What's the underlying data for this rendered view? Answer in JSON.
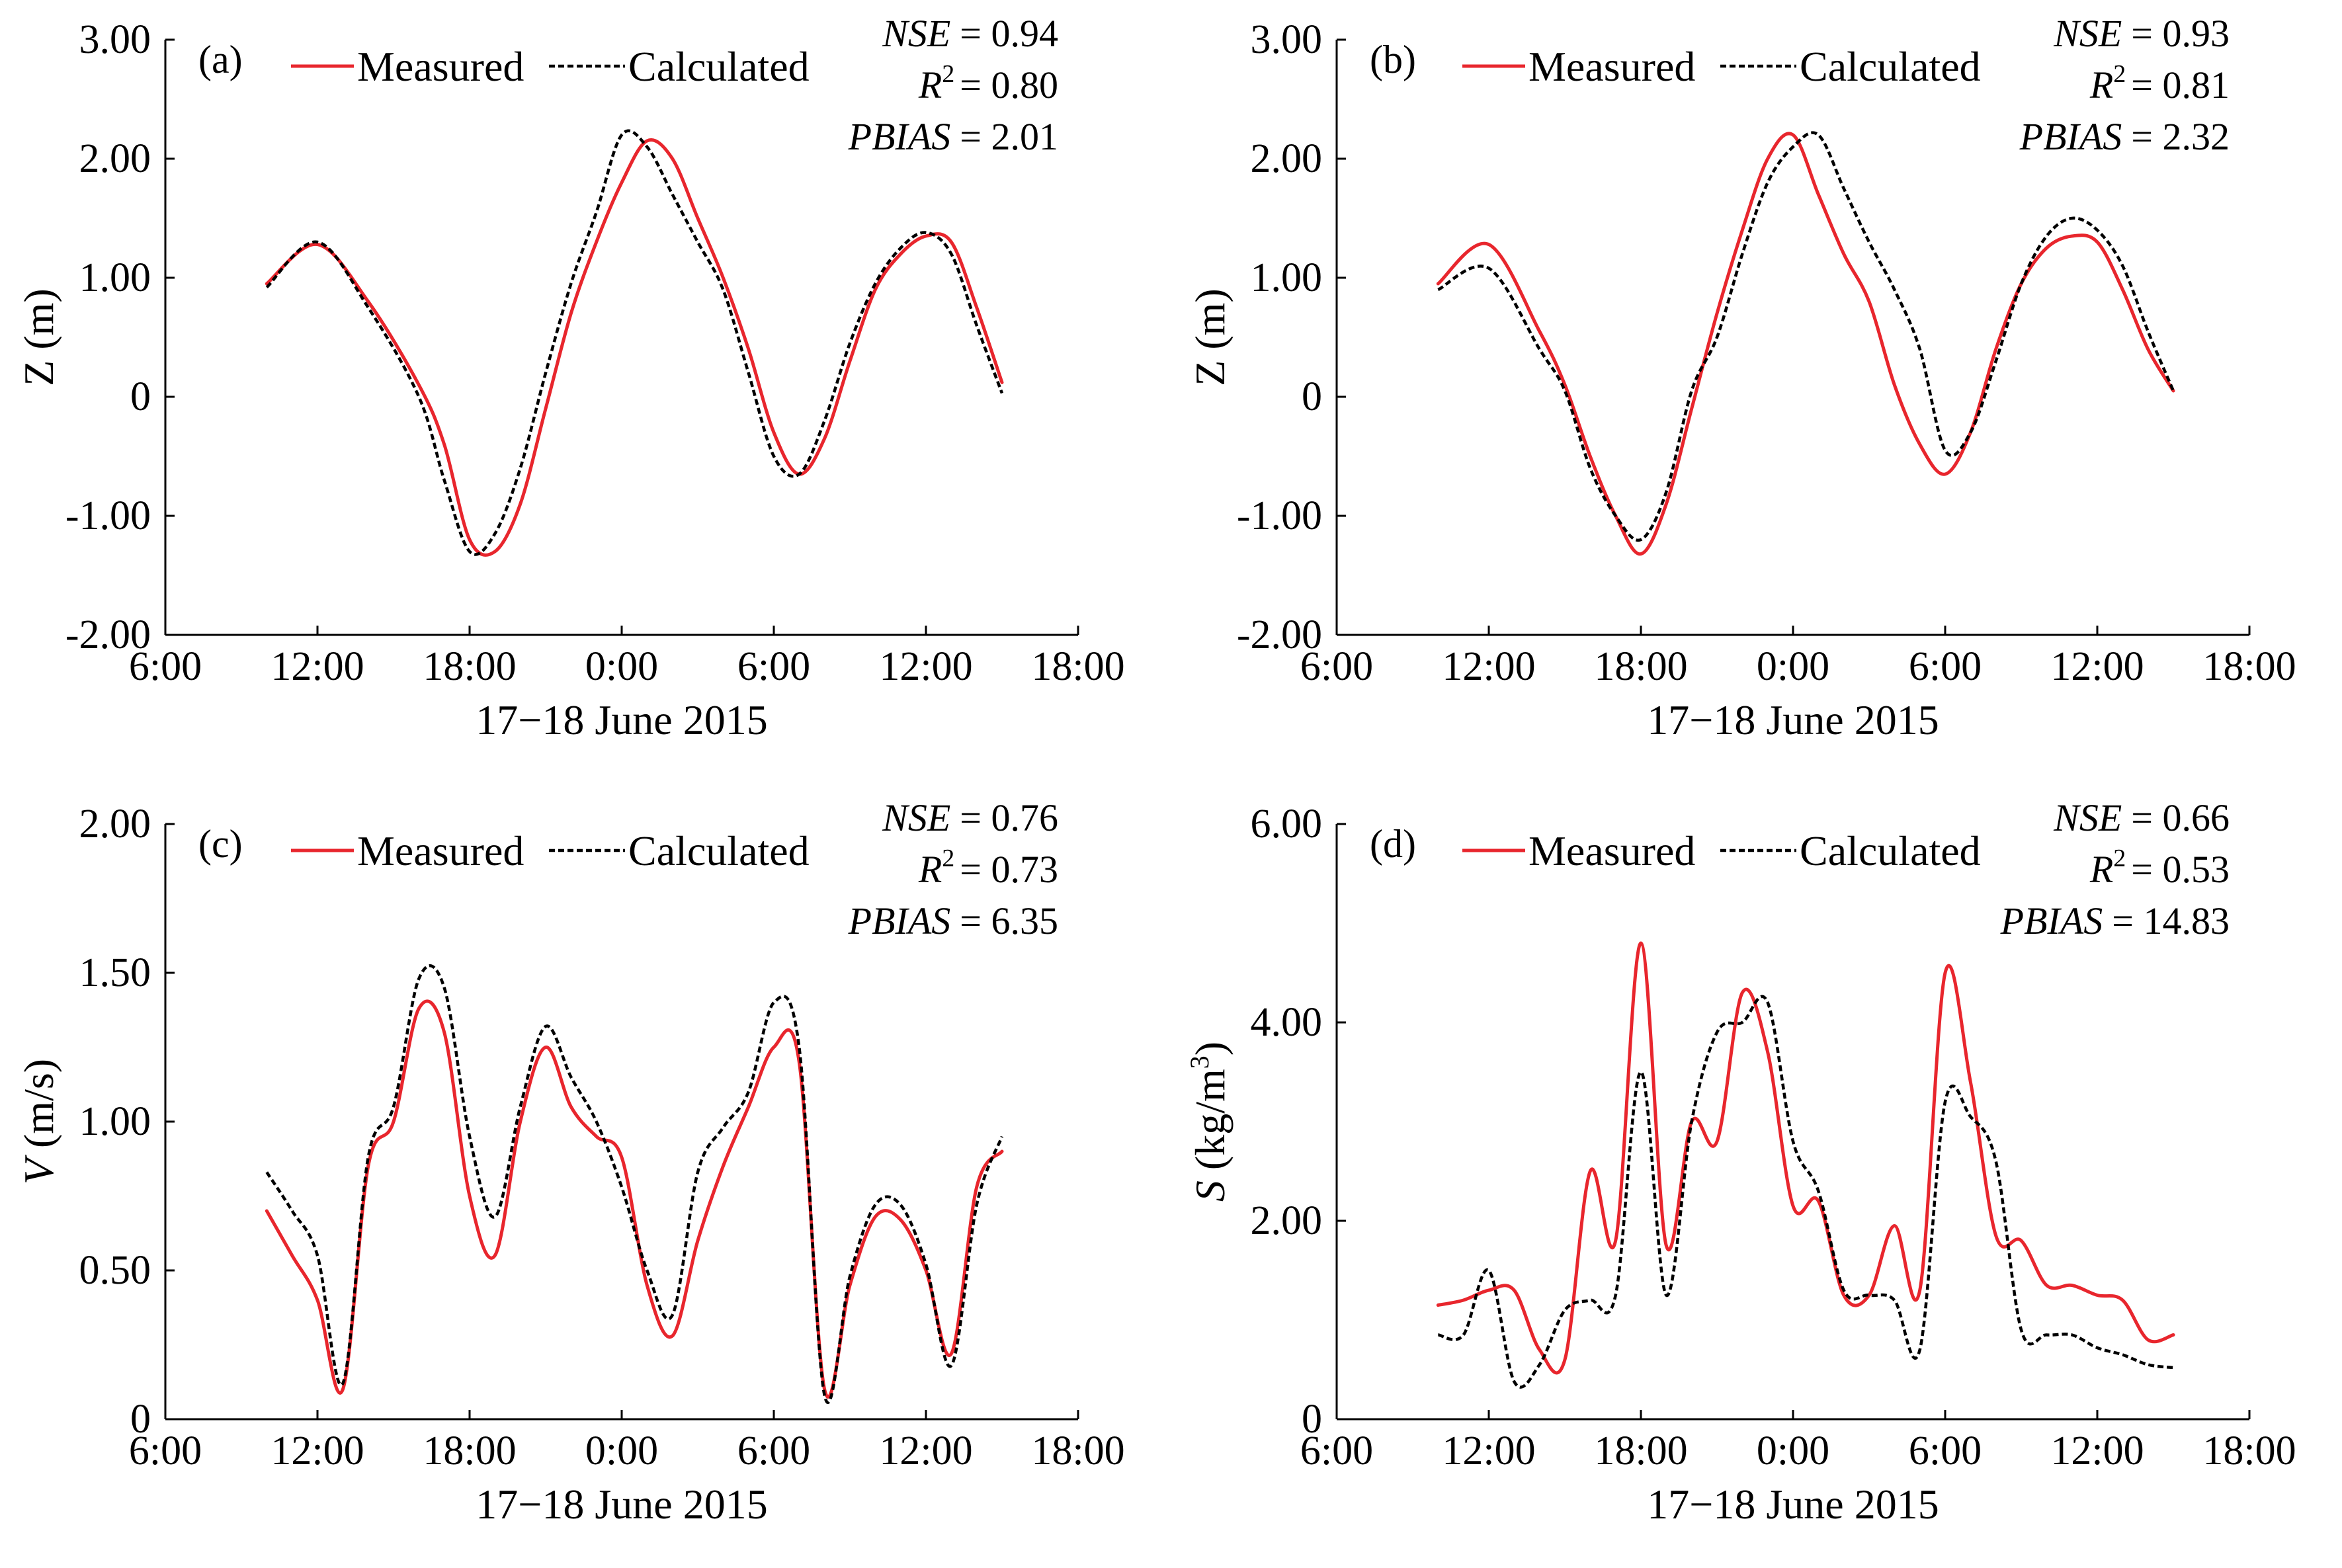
{
  "figure": {
    "colors": {
      "measured": "#e8262d",
      "calculated": "#000000",
      "axis": "#000000"
    }
  },
  "chart_data": [
    {
      "type": "line",
      "panel_label": "(a)",
      "xlabel": "17−18 June 2015",
      "ylabel": "Z (m)",
      "ylabel_var": "Z",
      "ylabel_unit": " (m)",
      "ylabel_sup": "",
      "ylabel_unit_after": "",
      "xlim": [
        6,
        42
      ],
      "ylim": [
        -2,
        3
      ],
      "x_ticks": [
        6,
        12,
        18,
        24,
        30,
        36,
        42
      ],
      "x_tick_labels": [
        "6:00",
        "12:00",
        "18:00",
        "0:00",
        "6:00",
        "12:00",
        "18:00"
      ],
      "y_ticks": [
        -2,
        -1,
        0,
        1,
        2,
        3
      ],
      "y_tick_labels": [
        "-2.00",
        "-1.00",
        "0",
        "1.00",
        "2.00",
        "3.00"
      ],
      "legend": {
        "measured": "Measured",
        "calculated": "Calculated"
      },
      "stats": {
        "nse_label": "NSE",
        "nse": "= 0.94",
        "r2_label": "R",
        "r2_sup": "2",
        "r2": "= 0.80",
        "pbias_label": "PBIAS",
        "pbias": "= 2.01"
      },
      "series": [
        {
          "name": "Measured",
          "x": [
            10,
            12,
            14,
            16,
            17,
            18,
            19,
            20,
            21,
            22,
            23,
            24,
            25,
            26,
            27,
            28,
            29,
            30,
            31,
            32,
            33,
            34,
            35,
            36,
            37,
            38,
            39
          ],
          "values": [
            0.95,
            1.28,
            0.8,
            0.1,
            -0.4,
            -1.2,
            -1.3,
            -0.9,
            -0.1,
            0.7,
            1.3,
            1.8,
            2.15,
            2.0,
            1.5,
            1.0,
            0.4,
            -0.3,
            -0.65,
            -0.35,
            0.3,
            0.9,
            1.2,
            1.35,
            1.3,
            0.75,
            0.12
          ]
        },
        {
          "name": "Calculated",
          "x": [
            10,
            12,
            14,
            16,
            17,
            18,
            19,
            20,
            21,
            22,
            23,
            24,
            25,
            26,
            27,
            28,
            29,
            30,
            31,
            32,
            33,
            34,
            35,
            36,
            37,
            38,
            39
          ],
          "values": [
            0.92,
            1.3,
            0.75,
            0.0,
            -0.7,
            -1.3,
            -1.15,
            -0.6,
            0.2,
            0.95,
            1.55,
            2.2,
            2.1,
            1.7,
            1.3,
            0.9,
            0.2,
            -0.5,
            -0.65,
            -0.2,
            0.45,
            0.95,
            1.25,
            1.38,
            1.2,
            0.6,
            0.03
          ]
        }
      ]
    },
    {
      "type": "line",
      "panel_label": "(b)",
      "xlabel": "17−18 June 2015",
      "ylabel": "Z (m)",
      "ylabel_var": "Z",
      "ylabel_unit": " (m)",
      "ylabel_sup": "",
      "ylabel_unit_after": "",
      "xlim": [
        6,
        42
      ],
      "ylim": [
        -2,
        3
      ],
      "x_ticks": [
        6,
        12,
        18,
        24,
        30,
        36,
        42
      ],
      "x_tick_labels": [
        "6:00",
        "12:00",
        "18:00",
        "0:00",
        "6:00",
        "12:00",
        "18:00"
      ],
      "y_ticks": [
        -2,
        -1,
        0,
        1,
        2,
        3
      ],
      "y_tick_labels": [
        "-2.00",
        "-1.00",
        "0",
        "1.00",
        "2.00",
        "3.00"
      ],
      "legend": {
        "measured": "Measured",
        "calculated": "Calculated"
      },
      "stats": {
        "nse_label": "NSE",
        "nse": "= 0.93",
        "r2_label": "R",
        "r2_sup": "2",
        "r2": "= 0.81",
        "pbias_label": "PBIAS",
        "pbias": "= 2.32"
      },
      "series": [
        {
          "name": "Measured",
          "x": [
            10,
            12,
            14,
            15,
            16,
            17,
            18,
            19,
            20,
            21,
            22,
            23,
            24,
            25,
            26,
            27,
            28,
            29,
            30,
            31,
            32,
            33,
            34,
            35,
            36,
            37,
            38,
            39
          ],
          "values": [
            0.95,
            1.28,
            0.55,
            0.1,
            -0.5,
            -1.0,
            -1.32,
            -0.9,
            -0.1,
            0.7,
            1.4,
            2.0,
            2.2,
            1.7,
            1.2,
            0.8,
            0.1,
            -0.4,
            -0.65,
            -0.3,
            0.4,
            0.95,
            1.25,
            1.35,
            1.3,
            0.9,
            0.4,
            0.05
          ]
        },
        {
          "name": "Calculated",
          "x": [
            10,
            12,
            14,
            15,
            16,
            17,
            18,
            19,
            20,
            21,
            22,
            23,
            24,
            25,
            26,
            27,
            28,
            29,
            30,
            31,
            32,
            33,
            34,
            35,
            36,
            37,
            38,
            39
          ],
          "values": [
            0.9,
            1.08,
            0.4,
            0.05,
            -0.6,
            -1.0,
            -1.2,
            -0.8,
            0.05,
            0.5,
            1.2,
            1.8,
            2.1,
            2.2,
            1.75,
            1.3,
            0.9,
            0.4,
            -0.45,
            -0.3,
            0.3,
            0.95,
            1.35,
            1.5,
            1.4,
            1.1,
            0.55,
            0.05
          ]
        }
      ]
    },
    {
      "type": "line",
      "panel_label": "(c)",
      "xlabel": "17−18 June 2015",
      "ylabel": "V (m/s)",
      "ylabel_var": "V",
      "ylabel_unit": " (m/s)",
      "ylabel_sup": "",
      "ylabel_unit_after": "",
      "xlim": [
        6,
        42
      ],
      "ylim": [
        0,
        2
      ],
      "x_ticks": [
        6,
        12,
        18,
        24,
        30,
        36,
        42
      ],
      "x_tick_labels": [
        "6:00",
        "12:00",
        "18:00",
        "0:00",
        "6:00",
        "12:00",
        "18:00"
      ],
      "y_ticks": [
        0,
        0.5,
        1,
        1.5,
        2
      ],
      "y_tick_labels": [
        "0",
        "0.50",
        "1.00",
        "1.50",
        "2.00"
      ],
      "legend": {
        "measured": "Measured",
        "calculated": "Calculated"
      },
      "stats": {
        "nse_label": "NSE",
        "nse": "= 0.76",
        "r2_label": "R",
        "r2_sup": "2",
        "r2": "= 0.73",
        "pbias_label": "PBIAS",
        "pbias": "= 6.35"
      },
      "series": [
        {
          "name": "Measured",
          "x": [
            10,
            11,
            12,
            13,
            14,
            15,
            16,
            17,
            18,
            19,
            20,
            21,
            22,
            23,
            24,
            25,
            26,
            27,
            28,
            29,
            30,
            31,
            32,
            33,
            34,
            35,
            36,
            37,
            38,
            39
          ],
          "values": [
            0.7,
            0.55,
            0.4,
            0.1,
            0.85,
            1.0,
            1.38,
            1.3,
            0.75,
            0.55,
            1.0,
            1.25,
            1.05,
            0.95,
            0.88,
            0.45,
            0.28,
            0.6,
            0.85,
            1.05,
            1.25,
            1.2,
            0.1,
            0.45,
            0.68,
            0.67,
            0.5,
            0.22,
            0.78,
            0.9
          ]
        },
        {
          "name": "Calculated",
          "x": [
            10,
            11,
            12,
            13,
            14,
            15,
            16,
            17,
            18,
            19,
            20,
            21,
            22,
            23,
            24,
            25,
            26,
            27,
            28,
            29,
            30,
            31,
            32,
            33,
            34,
            35,
            36,
            37,
            38,
            39
          ],
          "values": [
            0.83,
            0.7,
            0.55,
            0.12,
            0.88,
            1.05,
            1.48,
            1.45,
            0.95,
            0.68,
            1.05,
            1.32,
            1.15,
            1.0,
            0.78,
            0.5,
            0.35,
            0.83,
            0.98,
            1.1,
            1.4,
            1.25,
            0.08,
            0.48,
            0.72,
            0.72,
            0.52,
            0.18,
            0.72,
            0.95
          ]
        }
      ]
    },
    {
      "type": "line",
      "panel_label": "(d)",
      "xlabel": "17−18 June 2015",
      "ylabel": "S (kg/m3)",
      "ylabel_var": "S",
      "ylabel_unit": " (kg/m",
      "ylabel_sup": "3",
      "ylabel_unit_after": ")",
      "xlim": [
        6,
        42
      ],
      "ylim": [
        0,
        6
      ],
      "x_ticks": [
        6,
        12,
        18,
        24,
        30,
        36,
        42
      ],
      "x_tick_labels": [
        "6:00",
        "12:00",
        "18:00",
        "0:00",
        "6:00",
        "12:00",
        "18:00"
      ],
      "y_ticks": [
        0,
        2,
        4,
        6
      ],
      "y_tick_labels": [
        "0",
        "2.00",
        "4.00",
        "6.00"
      ],
      "legend": {
        "measured": "Measured",
        "calculated": "Calculated"
      },
      "stats": {
        "nse_label": "NSE",
        "nse": "= 0.66",
        "r2_label": "R",
        "r2_sup": "2",
        "r2": "= 0.53",
        "pbias_label": "PBIAS",
        "pbias": "= 14.83"
      },
      "series": [
        {
          "name": "Measured",
          "x": [
            10,
            11,
            12,
            13,
            14,
            15,
            16,
            17,
            18,
            19,
            20,
            21,
            22,
            23,
            24,
            25,
            26,
            27,
            28,
            29,
            30,
            31,
            32,
            33,
            34,
            35,
            36,
            37,
            38,
            39
          ],
          "values": [
            1.15,
            1.2,
            1.3,
            1.3,
            0.7,
            0.6,
            2.5,
            1.8,
            4.8,
            1.75,
            3.0,
            2.8,
            4.3,
            3.7,
            2.15,
            2.2,
            1.25,
            1.25,
            1.95,
            1.3,
            4.5,
            3.4,
            1.85,
            1.8,
            1.35,
            1.35,
            1.25,
            1.2,
            0.8,
            0.85
          ]
        },
        {
          "name": "Calculated",
          "x": [
            10,
            11,
            12,
            13,
            14,
            15,
            16,
            17,
            18,
            19,
            20,
            21,
            22,
            23,
            24,
            25,
            26,
            27,
            28,
            29,
            30,
            31,
            32,
            33,
            34,
            35,
            36,
            37,
            38,
            39
          ],
          "values": [
            0.85,
            0.85,
            1.5,
            0.38,
            0.55,
            1.1,
            1.2,
            1.25,
            3.5,
            1.25,
            3.0,
            3.9,
            4.0,
            4.2,
            2.8,
            2.3,
            1.3,
            1.25,
            1.2,
            0.7,
            3.2,
            3.05,
            2.6,
            0.9,
            0.85,
            0.85,
            0.72,
            0.65,
            0.55,
            0.52
          ]
        }
      ]
    }
  ]
}
